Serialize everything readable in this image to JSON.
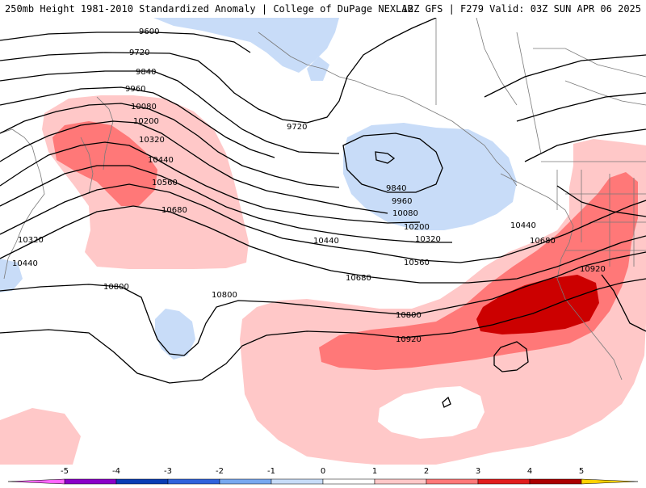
{
  "header": {
    "title_left": "250mb Height 1981-2010 Standardized Anomaly | College of DuPage NEXLAB",
    "title_right": "12Z GFS | F279 Valid: 03Z SUN APR 06 2025"
  },
  "contours": {
    "c9600": "9600",
    "c9720": "9720",
    "c9720b": "9720",
    "c9840": "9840",
    "c9840b": "9840",
    "c9960": "9960",
    "c9960b": "9960",
    "c10080": "10080",
    "c10080b": "10080",
    "c10200": "10200",
    "c10200b": "10200",
    "c10320": "10320",
    "c10320b": "10320",
    "c10320c": "10320",
    "c10440": "10440",
    "c10440b": "10440",
    "c10440c": "10440",
    "c10440d": "10440",
    "c10560": "10560",
    "c10560b": "10560",
    "c10680": "10680",
    "c10680b": "10680",
    "c10680c": "10680",
    "c10800": "10800",
    "c10800b": "10800",
    "c10800c": "10800",
    "c10920": "10920",
    "c10920b": "10920"
  },
  "colorbar": {
    "ticks": [
      "-5",
      "-4",
      "-3",
      "-2",
      "-1",
      "0",
      "1",
      "2",
      "3",
      "4",
      "5"
    ],
    "colors": [
      "#ff66ff",
      "#8a00c8",
      "#0a3cb4",
      "#2f62dc",
      "#78a8f0",
      "#c8dcf8",
      "#ffffff",
      "#ffc8c8",
      "#ff7878",
      "#e11c1c",
      "#aa0000",
      "#ff8c00",
      "#ffd200"
    ]
  },
  "legend_colors": {
    "neg1": "#c8dcf8",
    "pos1": "#ffc8c8",
    "pos2": "#ff7878",
    "pos3": "#cc0000"
  }
}
